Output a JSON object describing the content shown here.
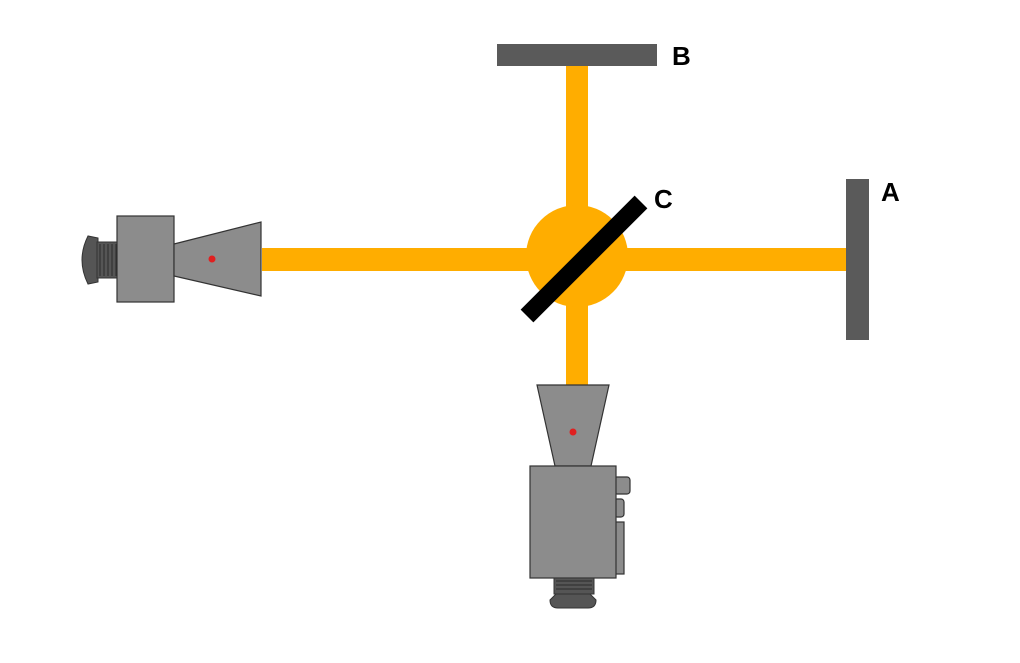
{
  "labels": {
    "mirror_a": "A",
    "mirror_b": "B",
    "splitter_c": "C"
  },
  "colors": {
    "beam": "#ffad00",
    "mirror": "#5a5a5a",
    "splitter": "#000000",
    "device_body": "#8c8c8c",
    "device_dark": "#555555",
    "device_outline": "#333333",
    "focus_dot": "#e02020"
  }
}
